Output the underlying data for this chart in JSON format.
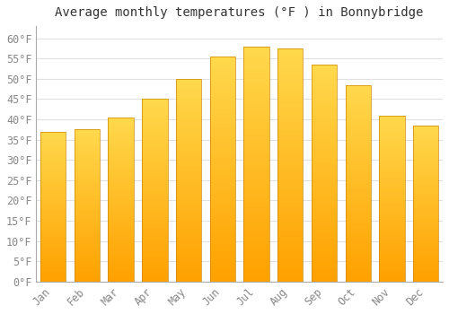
{
  "months": [
    "Jan",
    "Feb",
    "Mar",
    "Apr",
    "May",
    "Jun",
    "Jul",
    "Aug",
    "Sep",
    "Oct",
    "Nov",
    "Dec"
  ],
  "values": [
    37,
    37.5,
    40.5,
    45,
    50,
    55.5,
    58,
    57.5,
    53.5,
    48.5,
    41,
    38.5
  ],
  "bar_color_top": "#FFC04D",
  "bar_color_bottom": "#FFA000",
  "bar_edge_color": "#CC8800",
  "title": "Average monthly temperatures (°F ) in Bonnybridge",
  "ylim": [
    0,
    63
  ],
  "yticks": [
    0,
    5,
    10,
    15,
    20,
    25,
    30,
    35,
    40,
    45,
    50,
    55,
    60
  ],
  "background_color": "#ffffff",
  "grid_color": "#e0e0e0",
  "title_fontsize": 10,
  "tick_fontsize": 8.5,
  "bar_width": 0.75
}
